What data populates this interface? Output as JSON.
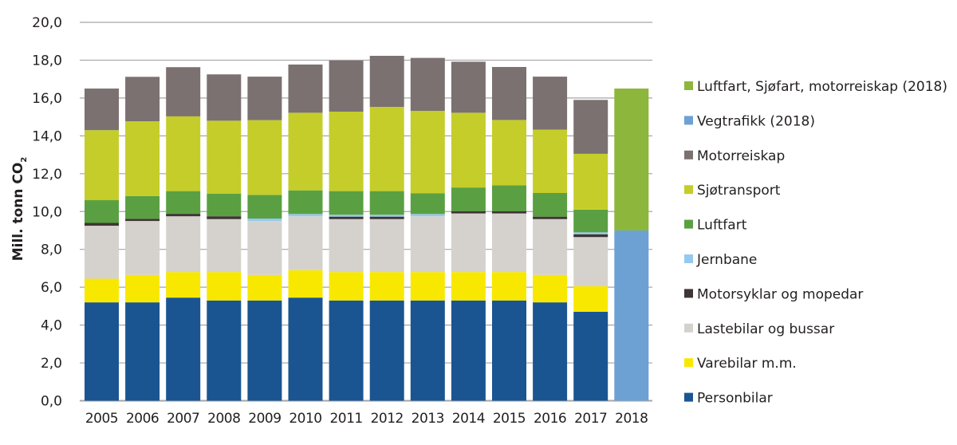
{
  "chart_data": {
    "type": "bar",
    "stacked": true,
    "title": "",
    "xlabel": "",
    "ylabel": "Mill. tonn CO",
    "ylabel_subscript": "2",
    "ylim": [
      0,
      20
    ],
    "yticks": [
      0,
      2,
      4,
      6,
      8,
      10,
      12,
      14,
      16,
      18,
      20
    ],
    "ytick_labels": [
      "0,0",
      "2,0",
      "4,0",
      "6,0",
      "8,0",
      "10,0",
      "12,0",
      "14,0",
      "16,0",
      "18,0",
      "20,0"
    ],
    "grid": true,
    "legend_position": "right",
    "categories": [
      "2005",
      "2006",
      "2007",
      "2008",
      "2009",
      "2010",
      "2011",
      "2012",
      "2013",
      "2014",
      "2015",
      "2016",
      "2017",
      "2018"
    ],
    "series": [
      {
        "name": "Personbilar",
        "label": "Personbilar",
        "color": "#1a5592",
        "values": [
          5.2,
          5.2,
          5.45,
          5.3,
          5.3,
          5.45,
          5.3,
          5.3,
          5.3,
          5.3,
          5.3,
          5.2,
          4.7,
          0
        ]
      },
      {
        "name": "Varebilar m.m.",
        "label": "Varebilar m.m.",
        "color": "#f8e800",
        "values": [
          1.25,
          1.45,
          1.35,
          1.5,
          1.35,
          1.45,
          1.5,
          1.5,
          1.5,
          1.5,
          1.5,
          1.45,
          1.35,
          0
        ]
      },
      {
        "name": "Lastebilar og bussar",
        "label": "Lastebilar og bussar",
        "color": "#d5d2cd",
        "values": [
          2.8,
          2.85,
          2.95,
          2.8,
          2.85,
          2.85,
          2.8,
          2.8,
          2.95,
          3.1,
          3.1,
          2.95,
          2.6,
          0
        ]
      },
      {
        "name": "Motorsyklar og mopedar",
        "label": "Motorsyklar og mopedar",
        "color": "#3e3535",
        "values": [
          0.15,
          0.12,
          0.13,
          0.15,
          0,
          0,
          0.13,
          0.13,
          0,
          0.12,
          0.12,
          0.13,
          0.15,
          0
        ]
      },
      {
        "name": "Jernbane",
        "label": "Jernbane",
        "color": "#96c9ef",
        "values": [
          0,
          0,
          0,
          0,
          0.13,
          0.12,
          0.1,
          0.1,
          0.12,
          0,
          0,
          0,
          0.1,
          0
        ]
      },
      {
        "name": "Luftfart",
        "label": "Luftfart",
        "color": "#5aa042",
        "values": [
          1.2,
          1.2,
          1.2,
          1.2,
          1.25,
          1.25,
          1.25,
          1.25,
          1.1,
          1.25,
          1.37,
          1.25,
          1.2,
          0
        ]
      },
      {
        "name": "Sjøtransport",
        "label": "Sjøtransport",
        "color": "#c5cd2a",
        "values": [
          3.7,
          3.95,
          3.95,
          3.85,
          3.95,
          4.1,
          4.2,
          4.45,
          4.35,
          3.95,
          3.45,
          3.35,
          2.95,
          0
        ]
      },
      {
        "name": "Motorreiskap",
        "label": "Motorreiskap",
        "color": "#7b7170",
        "values": [
          2.2,
          2.35,
          2.6,
          2.45,
          2.3,
          2.55,
          2.7,
          2.7,
          2.8,
          2.7,
          2.8,
          2.8,
          2.85,
          0
        ]
      },
      {
        "name": "Vegtrafikk (2018)",
        "label": "Vegtrafikk (2018)",
        "color": "#6ea1d3",
        "values": [
          0,
          0,
          0,
          0,
          0,
          0,
          0,
          0,
          0,
          0,
          0,
          0,
          0,
          9.0
        ]
      },
      {
        "name": "Luftfart, Sjøfart, motorreiskap (2018)",
        "label": "Luftfart, Sjøfart, motorreiskap (2018)",
        "color": "#8db63c",
        "values": [
          0,
          0,
          0,
          0,
          0,
          0,
          0,
          0,
          0,
          0,
          0,
          0,
          0,
          7.5
        ]
      }
    ],
    "legend_order": [
      9,
      8,
      7,
      6,
      5,
      4,
      3,
      2,
      1,
      0
    ]
  }
}
